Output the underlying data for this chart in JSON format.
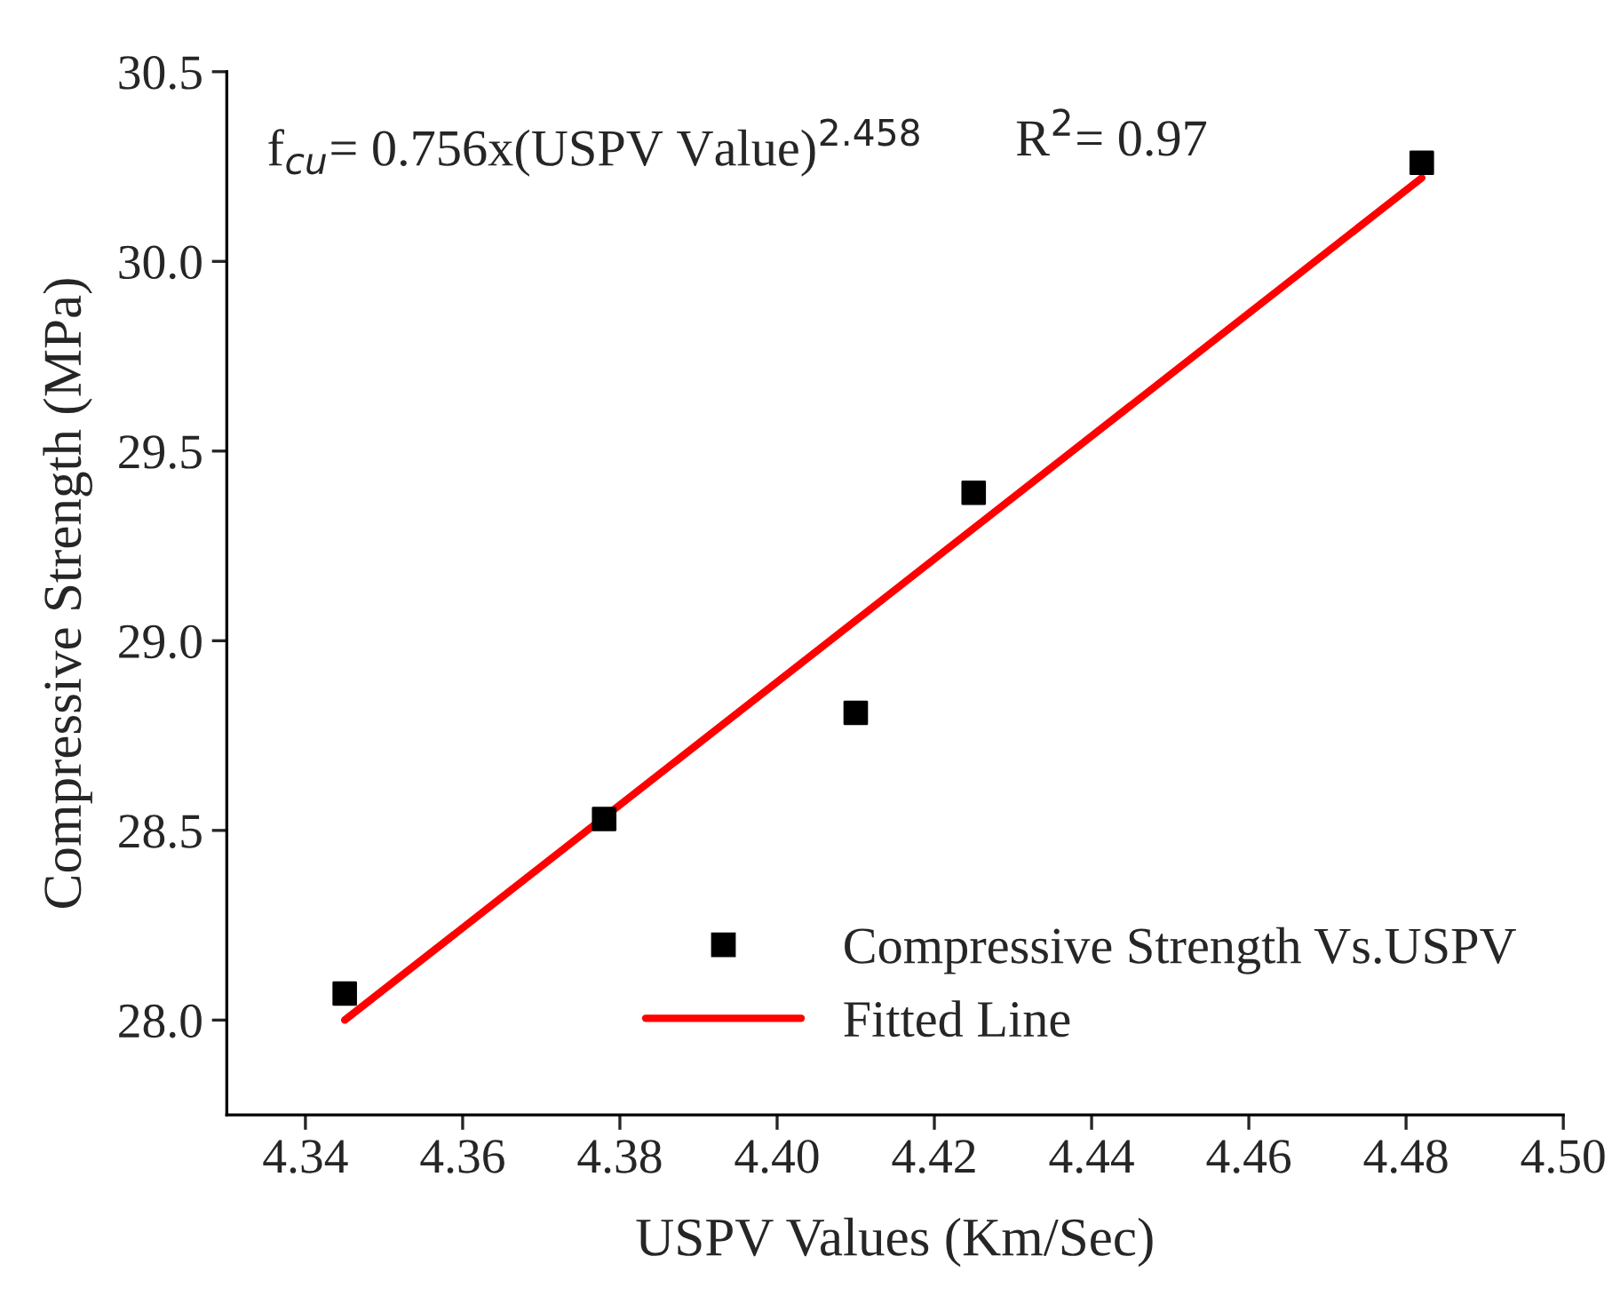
{
  "chart_data": {
    "type": "scatter",
    "xlabel": "USPV Values (Km/Sec)",
    "ylabel": "Compressive Strength (MPa)",
    "series": [
      {
        "name": "Compressive Strength Vs.USPV",
        "color": "#000000",
        "marker": "square",
        "x": [
          4.345,
          4.378,
          4.41,
          4.425,
          4.482
        ],
        "values": [
          28.07,
          28.53,
          28.81,
          29.39,
          30.26
        ]
      },
      {
        "name": "Fitted Line",
        "type": "line",
        "color": "#ff0000",
        "marker": "none",
        "line_style": "solid",
        "x": [
          4.345,
          4.482
        ],
        "values": [
          28.0,
          30.22
        ]
      }
    ],
    "annotations": [
      "f$_{cu}$= 0.756x(USPV Value)$^{2.458}$",
      "R$^{2}$= 0.97"
    ],
    "xlim": [
      4.33,
      4.5
    ],
    "ylim": [
      27.75,
      30.5
    ],
    "xticks": [
      {
        "value": 4.34,
        "label": "4.34"
      },
      {
        "value": 4.36,
        "label": "4.36"
      },
      {
        "value": 4.38,
        "label": "4.38"
      },
      {
        "value": 4.4,
        "label": "4.40"
      },
      {
        "value": 4.42,
        "label": "4.42"
      },
      {
        "value": 4.44,
        "label": "4.44"
      },
      {
        "value": 4.46,
        "label": "4.46"
      },
      {
        "value": 4.48,
        "label": "4.48"
      },
      {
        "value": 4.5,
        "label": "4.50"
      }
    ],
    "yticks": [
      {
        "value": 28.0,
        "label": "28.0"
      },
      {
        "value": 28.5,
        "label": "28.5"
      },
      {
        "value": 29.0,
        "label": "29.0"
      },
      {
        "value": 29.5,
        "label": "29.5"
      },
      {
        "value": 30.0,
        "label": "30.0"
      },
      {
        "value": 30.5,
        "label": "30.5"
      }
    ],
    "grid": false,
    "legend": "bottom right"
  }
}
